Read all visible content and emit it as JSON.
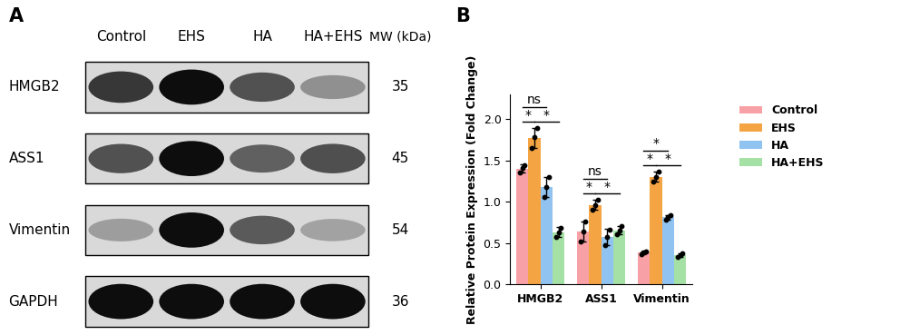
{
  "blot": {
    "panel_label": "A",
    "lanes": [
      "Control",
      "EHS",
      "HA",
      "HA+EHS"
    ],
    "mw_header": "MW (kDa)",
    "rows": [
      {
        "protein": "HMGB2",
        "mw": 35
      },
      {
        "protein": "ASS1",
        "mw": 45
      },
      {
        "protein": "Vimentin",
        "mw": 54
      },
      {
        "protein": "GAPDH",
        "mw": 36
      }
    ]
  },
  "chart_data": {
    "type": "bar",
    "panel_label": "B",
    "y_label": "Relative Protein Expression (Fold Change)",
    "categories": [
      "HMGB2",
      "ASS1",
      "Vimentin"
    ],
    "ylim": [
      0,
      2.3
    ],
    "yticks": [
      {
        "value": 0,
        "label": "0.0"
      },
      {
        "value": 0.5,
        "label": "0.5"
      },
      {
        "value": 1,
        "label": "1.0"
      },
      {
        "value": 1.5,
        "label": "1.5"
      },
      {
        "value": 2,
        "label": "2.0"
      }
    ],
    "legend": "upper right",
    "series": [
      {
        "name": "Control",
        "color": "#f7a1a6",
        "values": [
          1.4,
          0.64,
          0.38
        ],
        "errors": [
          0.05,
          0.12,
          0.02
        ],
        "points": [
          [
            1.35,
            1.41,
            1.44
          ],
          [
            0.52,
            0.64,
            0.76
          ],
          [
            0.36,
            0.38,
            0.4
          ]
        ]
      },
      {
        "name": "EHS",
        "color": "#f5a443",
        "values": [
          1.77,
          0.96,
          1.3
        ],
        "errors": [
          0.12,
          0.06,
          0.06
        ],
        "points": [
          [
            1.65,
            1.78,
            1.89
          ],
          [
            0.9,
            0.96,
            1.02
          ],
          [
            1.24,
            1.3,
            1.36
          ]
        ]
      },
      {
        "name": "HA",
        "color": "#90c3f0",
        "values": [
          1.18,
          0.57,
          0.81
        ],
        "errors": [
          0.12,
          0.1,
          0.03
        ],
        "points": [
          [
            1.06,
            1.18,
            1.3
          ],
          [
            0.47,
            0.57,
            0.66
          ],
          [
            0.78,
            0.81,
            0.84
          ]
        ]
      },
      {
        "name": "HA+EHS",
        "color": "#a5e0a5",
        "values": [
          0.63,
          0.65,
          0.35
        ],
        "errors": [
          0.06,
          0.05,
          0.02
        ],
        "points": [
          [
            0.57,
            0.63,
            0.68
          ],
          [
            0.6,
            0.65,
            0.7
          ],
          [
            0.33,
            0.35,
            0.37
          ]
        ]
      }
    ],
    "comparisons": [
      {
        "category": "HMGB2",
        "from": "Control",
        "to": "EHS",
        "label": "*"
      },
      {
        "category": "HMGB2",
        "from": "EHS",
        "to": "HA+EHS",
        "label": "*"
      },
      {
        "category": "HMGB2",
        "from": "Control",
        "to": "HA",
        "label": "ns"
      },
      {
        "category": "ASS1",
        "from": "Control",
        "to": "EHS",
        "label": "*"
      },
      {
        "category": "ASS1",
        "from": "EHS",
        "to": "HA+EHS",
        "label": "*"
      },
      {
        "category": "ASS1",
        "from": "Control",
        "to": "HA",
        "label": "ns"
      },
      {
        "category": "Vimentin",
        "from": "Control",
        "to": "EHS",
        "label": "*"
      },
      {
        "category": "Vimentin",
        "from": "EHS",
        "to": "HA+EHS",
        "label": "*"
      },
      {
        "category": "Vimentin",
        "from": "Control",
        "to": "HA",
        "label": "*"
      }
    ]
  }
}
